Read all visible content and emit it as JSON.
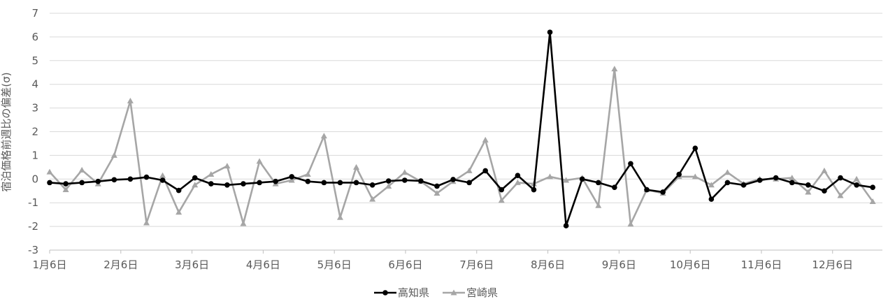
{
  "chart_data": {
    "type": "line",
    "ylabel": "宿泊価格前週比の偏差(σ)",
    "ylim": [
      -3,
      7
    ],
    "yticks": [
      -3,
      -2,
      -1,
      0,
      1,
      2,
      3,
      4,
      5,
      6,
      7
    ],
    "grid": true,
    "legend_position": "bottom",
    "x_tick_labels": [
      "1月6日",
      "2月6日",
      "3月6日",
      "4月6日",
      "5月6日",
      "6月6日",
      "7月6日",
      "8月6日",
      "9月6日",
      "10月6日",
      "11月6日",
      "12月6日"
    ],
    "series": [
      {
        "name": "高知県",
        "color": "#000000",
        "marker": "circle",
        "values": [
          -0.15,
          -0.2,
          -0.15,
          -0.1,
          -0.03,
          0,
          0.08,
          -0.05,
          -0.48,
          0.05,
          -0.2,
          -0.25,
          -0.2,
          -0.15,
          -0.1,
          0.1,
          -0.1,
          -0.15,
          -0.15,
          -0.15,
          -0.25,
          -0.08,
          -0.05,
          -0.08,
          -0.3,
          -0.02,
          -0.15,
          0.35,
          -0.45,
          0.15,
          -0.45,
          6.2,
          -1.97,
          0,
          -0.15,
          -0.35,
          0.65,
          -0.45,
          -0.55,
          0.2,
          1.3,
          -0.85,
          -0.15,
          -0.25,
          -0.05,
          0.05,
          -0.15,
          -0.25,
          -0.5,
          0.05,
          -0.25,
          -0.35
        ]
      },
      {
        "name": "宮崎県",
        "color": "#a6a6a6",
        "marker": "triangle",
        "values": [
          0.3,
          -0.45,
          0.38,
          -0.2,
          1,
          3.3,
          -1.85,
          0.15,
          -1.4,
          -0.25,
          0.2,
          0.55,
          -1.88,
          0.75,
          -0.2,
          -0.05,
          0.2,
          1.82,
          -1.62,
          0.5,
          -0.85,
          -0.3,
          0.28,
          -0.1,
          -0.6,
          -0.1,
          0.35,
          1.65,
          -0.9,
          -0.15,
          -0.2,
          0.1,
          -0.05,
          0.05,
          -1.12,
          4.65,
          -1.9,
          -0.45,
          -0.6,
          0.1,
          0.1,
          -0.25,
          0.28,
          -0.2,
          0,
          0,
          0.05,
          -0.55,
          0.35,
          -0.7,
          0,
          -0.95
        ]
      }
    ]
  }
}
